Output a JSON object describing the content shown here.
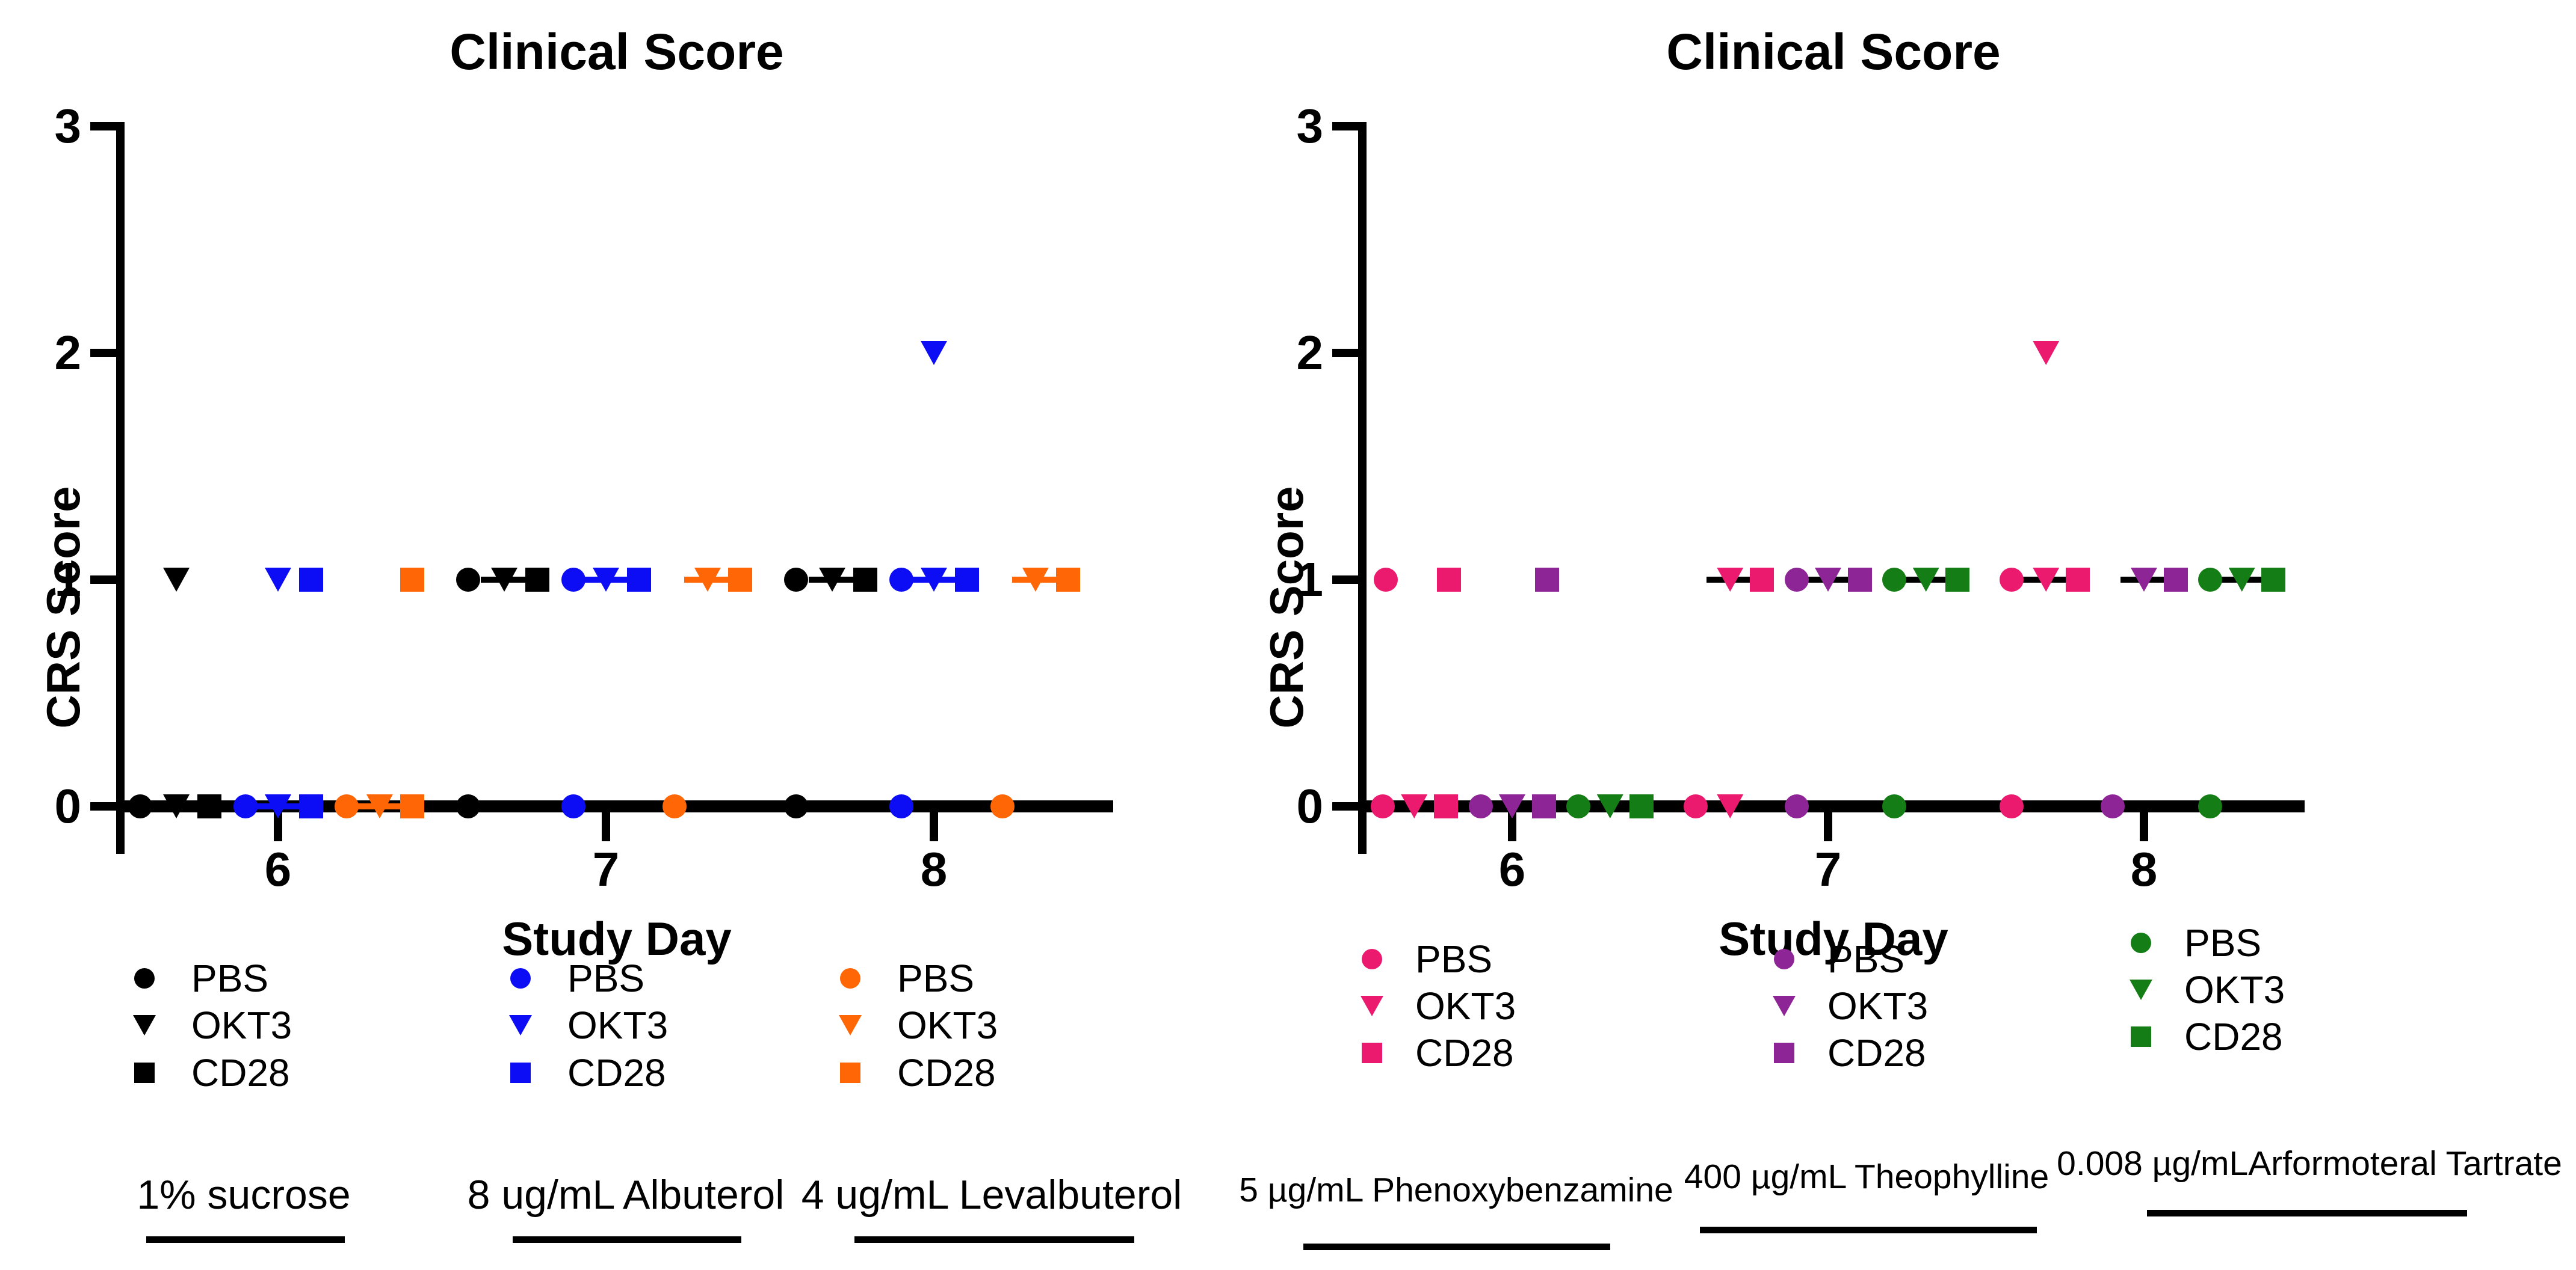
{
  "figure": {
    "type": "two-panel scatter figure",
    "background": "#ffffff",
    "text_color": "#000000"
  },
  "colors": {
    "black": "#000000",
    "blue": "#0d0df5",
    "orange": "#ff6606",
    "pink": "#ec1a6f",
    "purple": "#8e2596",
    "green": "#157d15"
  },
  "chart_data": [
    {
      "type": "scatter",
      "title": "Clinical Score",
      "xlabel": "Study Day",
      "ylabel": "CRS Score",
      "x_ticks": [
        6,
        7,
        8
      ],
      "y_ticks": [
        0,
        1,
        2,
        3
      ],
      "xlim": [
        5.5,
        8.55
      ],
      "ylim": [
        0,
        3
      ],
      "grid": false,
      "dash_color_mode": "self",
      "groups": [
        {
          "color_key": "black",
          "group_label": "1% sucrose",
          "treatments": [
            "PBS",
            "OKT3",
            "CD28"
          ]
        },
        {
          "color_key": "blue",
          "group_label": "8 ug/mL Albuterol",
          "treatments": [
            "PBS",
            "OKT3",
            "CD28"
          ]
        },
        {
          "color_key": "orange",
          "group_label": "4 ug/mL Levalbuterol",
          "treatments": [
            "PBS",
            "OKT3",
            "CD28"
          ]
        }
      ],
      "marker_legend": {
        "circle": "PBS",
        "tri": "OKT3",
        "square": "CD28"
      },
      "points": [
        {
          "day": 5.58,
          "score": 0,
          "g": "black",
          "m": "circle"
        },
        {
          "day": 5.69,
          "score": 0,
          "g": "black",
          "m": "tri",
          "dash": true
        },
        {
          "day": 5.79,
          "score": 0,
          "g": "black",
          "m": "square"
        },
        {
          "day": 5.9,
          "score": 0,
          "g": "blue",
          "m": "circle"
        },
        {
          "day": 6.0,
          "score": 0,
          "g": "blue",
          "m": "tri",
          "dash": true
        },
        {
          "day": 6.1,
          "score": 0,
          "g": "blue",
          "m": "square"
        },
        {
          "day": 6.21,
          "score": 0,
          "g": "orange",
          "m": "circle"
        },
        {
          "day": 6.31,
          "score": 0,
          "g": "orange",
          "m": "tri",
          "dash": true
        },
        {
          "day": 6.41,
          "score": 0,
          "g": "orange",
          "m": "square"
        },
        {
          "day": 6.58,
          "score": 0,
          "g": "black",
          "m": "circle"
        },
        {
          "day": 6.9,
          "score": 0,
          "g": "blue",
          "m": "circle"
        },
        {
          "day": 7.21,
          "score": 0,
          "g": "orange",
          "m": "circle"
        },
        {
          "day": 7.58,
          "score": 0,
          "g": "black",
          "m": "circle"
        },
        {
          "day": 7.9,
          "score": 0,
          "g": "blue",
          "m": "circle"
        },
        {
          "day": 8.21,
          "score": 0,
          "g": "orange",
          "m": "circle"
        },
        {
          "day": 5.69,
          "score": 1,
          "g": "black",
          "m": "tri"
        },
        {
          "day": 6.0,
          "score": 1,
          "g": "blue",
          "m": "tri"
        },
        {
          "day": 6.1,
          "score": 1,
          "g": "blue",
          "m": "square"
        },
        {
          "day": 6.41,
          "score": 1,
          "g": "orange",
          "m": "square"
        },
        {
          "day": 6.58,
          "score": 1,
          "g": "black",
          "m": "circle"
        },
        {
          "day": 6.69,
          "score": 1,
          "g": "black",
          "m": "tri",
          "dash": true
        },
        {
          "day": 6.79,
          "score": 1,
          "g": "black",
          "m": "square"
        },
        {
          "day": 6.9,
          "score": 1,
          "g": "blue",
          "m": "circle"
        },
        {
          "day": 7.0,
          "score": 1,
          "g": "blue",
          "m": "tri",
          "dash": true
        },
        {
          "day": 7.1,
          "score": 1,
          "g": "blue",
          "m": "square"
        },
        {
          "day": 7.31,
          "score": 1,
          "g": "orange",
          "m": "tri",
          "dash": true
        },
        {
          "day": 7.41,
          "score": 1,
          "g": "orange",
          "m": "square"
        },
        {
          "day": 7.58,
          "score": 1,
          "g": "black",
          "m": "circle"
        },
        {
          "day": 7.69,
          "score": 1,
          "g": "black",
          "m": "tri",
          "dash": true
        },
        {
          "day": 7.79,
          "score": 1,
          "g": "black",
          "m": "square"
        },
        {
          "day": 7.9,
          "score": 1,
          "g": "blue",
          "m": "circle"
        },
        {
          "day": 8.0,
          "score": 1,
          "g": "blue",
          "m": "tri",
          "dash": true
        },
        {
          "day": 8.1,
          "score": 1,
          "g": "blue",
          "m": "square"
        },
        {
          "day": 8.31,
          "score": 1,
          "g": "orange",
          "m": "tri",
          "dash": true
        },
        {
          "day": 8.41,
          "score": 1,
          "g": "orange",
          "m": "square"
        },
        {
          "day": 8.0,
          "score": 2,
          "g": "blue",
          "m": "tri"
        }
      ]
    },
    {
      "type": "scatter",
      "title": "Clinical Score",
      "xlabel": "Study Day",
      "ylabel": "CRS Score",
      "x_ticks": [
        6,
        7,
        8
      ],
      "y_ticks": [
        0,
        1,
        2,
        3
      ],
      "xlim": [
        5.5,
        8.5
      ],
      "ylim": [
        0,
        3
      ],
      "grid": false,
      "dash_color_mode": "black",
      "groups": [
        {
          "color_key": "pink",
          "group_label": "5 µg/mL Phenoxybenzamine",
          "treatments": [
            "PBS",
            "OKT3",
            "CD28"
          ]
        },
        {
          "color_key": "purple",
          "group_label": "400 µg/mL Theophylline",
          "treatments": [
            "PBS",
            "OKT3",
            "CD28"
          ]
        },
        {
          "color_key": "green",
          "group_label": "0.008 µg/mLArformoteral Tartrate",
          "treatments": [
            "PBS",
            "OKT3",
            "CD28"
          ]
        }
      ],
      "marker_legend": {
        "circle": "PBS",
        "tri": "OKT3",
        "square": "CD28"
      },
      "points": [
        {
          "day": 5.59,
          "score": 0,
          "g": "pink",
          "m": "circle"
        },
        {
          "day": 5.69,
          "score": 0,
          "g": "pink",
          "m": "tri",
          "dash": true
        },
        {
          "day": 5.79,
          "score": 0,
          "g": "pink",
          "m": "square"
        },
        {
          "day": 5.9,
          "score": 0,
          "g": "purple",
          "m": "circle"
        },
        {
          "day": 6.0,
          "score": 0,
          "g": "purple",
          "m": "tri",
          "dash": true
        },
        {
          "day": 6.1,
          "score": 0,
          "g": "purple",
          "m": "square"
        },
        {
          "day": 6.21,
          "score": 0,
          "g": "green",
          "m": "circle"
        },
        {
          "day": 6.31,
          "score": 0,
          "g": "green",
          "m": "tri",
          "dash": true
        },
        {
          "day": 6.41,
          "score": 0,
          "g": "green",
          "m": "square"
        },
        {
          "day": 6.58,
          "score": 0,
          "g": "pink",
          "m": "circle"
        },
        {
          "day": 6.69,
          "score": 0,
          "g": "pink",
          "m": "tri",
          "dash": true
        },
        {
          "day": 6.9,
          "score": 0,
          "g": "purple",
          "m": "circle"
        },
        {
          "day": 7.21,
          "score": 0,
          "g": "green",
          "m": "circle"
        },
        {
          "day": 7.58,
          "score": 0,
          "g": "pink",
          "m": "circle"
        },
        {
          "day": 7.9,
          "score": 0,
          "g": "purple",
          "m": "circle"
        },
        {
          "day": 8.21,
          "score": 0,
          "g": "green",
          "m": "circle"
        },
        {
          "day": 5.6,
          "score": 1,
          "g": "pink",
          "m": "circle"
        },
        {
          "day": 5.8,
          "score": 1,
          "g": "pink",
          "m": "square"
        },
        {
          "day": 6.11,
          "score": 1,
          "g": "purple",
          "m": "square"
        },
        {
          "day": 6.69,
          "score": 1,
          "g": "pink",
          "m": "tri",
          "dash": true
        },
        {
          "day": 6.79,
          "score": 1,
          "g": "pink",
          "m": "square"
        },
        {
          "day": 6.9,
          "score": 1,
          "g": "purple",
          "m": "circle"
        },
        {
          "day": 7.0,
          "score": 1,
          "g": "purple",
          "m": "tri",
          "dash": true
        },
        {
          "day": 7.1,
          "score": 1,
          "g": "purple",
          "m": "square"
        },
        {
          "day": 7.21,
          "score": 1,
          "g": "green",
          "m": "circle"
        },
        {
          "day": 7.31,
          "score": 1,
          "g": "green",
          "m": "tri",
          "dash": true
        },
        {
          "day": 7.41,
          "score": 1,
          "g": "green",
          "m": "square"
        },
        {
          "day": 7.58,
          "score": 1,
          "g": "pink",
          "m": "circle"
        },
        {
          "day": 7.69,
          "score": 1,
          "g": "pink",
          "m": "tri",
          "dash": true
        },
        {
          "day": 7.79,
          "score": 1,
          "g": "pink",
          "m": "square"
        },
        {
          "day": 8.0,
          "score": 1,
          "g": "purple",
          "m": "tri",
          "dash": true
        },
        {
          "day": 8.1,
          "score": 1,
          "g": "purple",
          "m": "square"
        },
        {
          "day": 8.21,
          "score": 1,
          "g": "green",
          "m": "circle"
        },
        {
          "day": 8.31,
          "score": 1,
          "g": "green",
          "m": "tri",
          "dash": true
        },
        {
          "day": 8.41,
          "score": 1,
          "g": "green",
          "m": "square"
        },
        {
          "day": 7.69,
          "score": 2,
          "g": "pink",
          "m": "tri"
        }
      ]
    }
  ],
  "legends": [
    {
      "columns": [
        {
          "color_key": "black",
          "entries": [
            {
              "marker": "circle",
              "label": "PBS"
            },
            {
              "marker": "tri",
              "label": "OKT3"
            },
            {
              "marker": "square",
              "label": "CD28"
            }
          ],
          "group_label": "1% sucrose"
        },
        {
          "color_key": "blue",
          "entries": [
            {
              "marker": "circle",
              "label": "PBS"
            },
            {
              "marker": "tri",
              "label": "OKT3"
            },
            {
              "marker": "square",
              "label": "CD28"
            }
          ],
          "group_label": "8 ug/mL Albuterol"
        },
        {
          "color_key": "orange",
          "entries": [
            {
              "marker": "circle",
              "label": "PBS"
            },
            {
              "marker": "tri",
              "label": "OKT3"
            },
            {
              "marker": "square",
              "label": "CD28"
            }
          ],
          "group_label": "4 ug/mL Levalbuterol"
        }
      ]
    },
    {
      "columns": [
        {
          "color_key": "pink",
          "entries": [
            {
              "marker": "circle",
              "label": "PBS"
            },
            {
              "marker": "tri",
              "label": "OKT3"
            },
            {
              "marker": "square",
              "label": "CD28"
            }
          ],
          "group_label": "5 µg/mL Phenoxybenzamine"
        },
        {
          "color_key": "purple",
          "entries": [
            {
              "marker": "circle",
              "label": "PBS"
            },
            {
              "marker": "tri",
              "label": "OKT3"
            },
            {
              "marker": "square",
              "label": "CD28"
            }
          ],
          "group_label": "400 µg/mL Theophylline"
        },
        {
          "color_key": "green",
          "entries": [
            {
              "marker": "circle",
              "label": "PBS"
            },
            {
              "marker": "tri",
              "label": "OKT3"
            },
            {
              "marker": "square",
              "label": "CD28"
            }
          ],
          "group_label": "0.008 µg/mLArformoteral Tartrate"
        }
      ]
    }
  ]
}
